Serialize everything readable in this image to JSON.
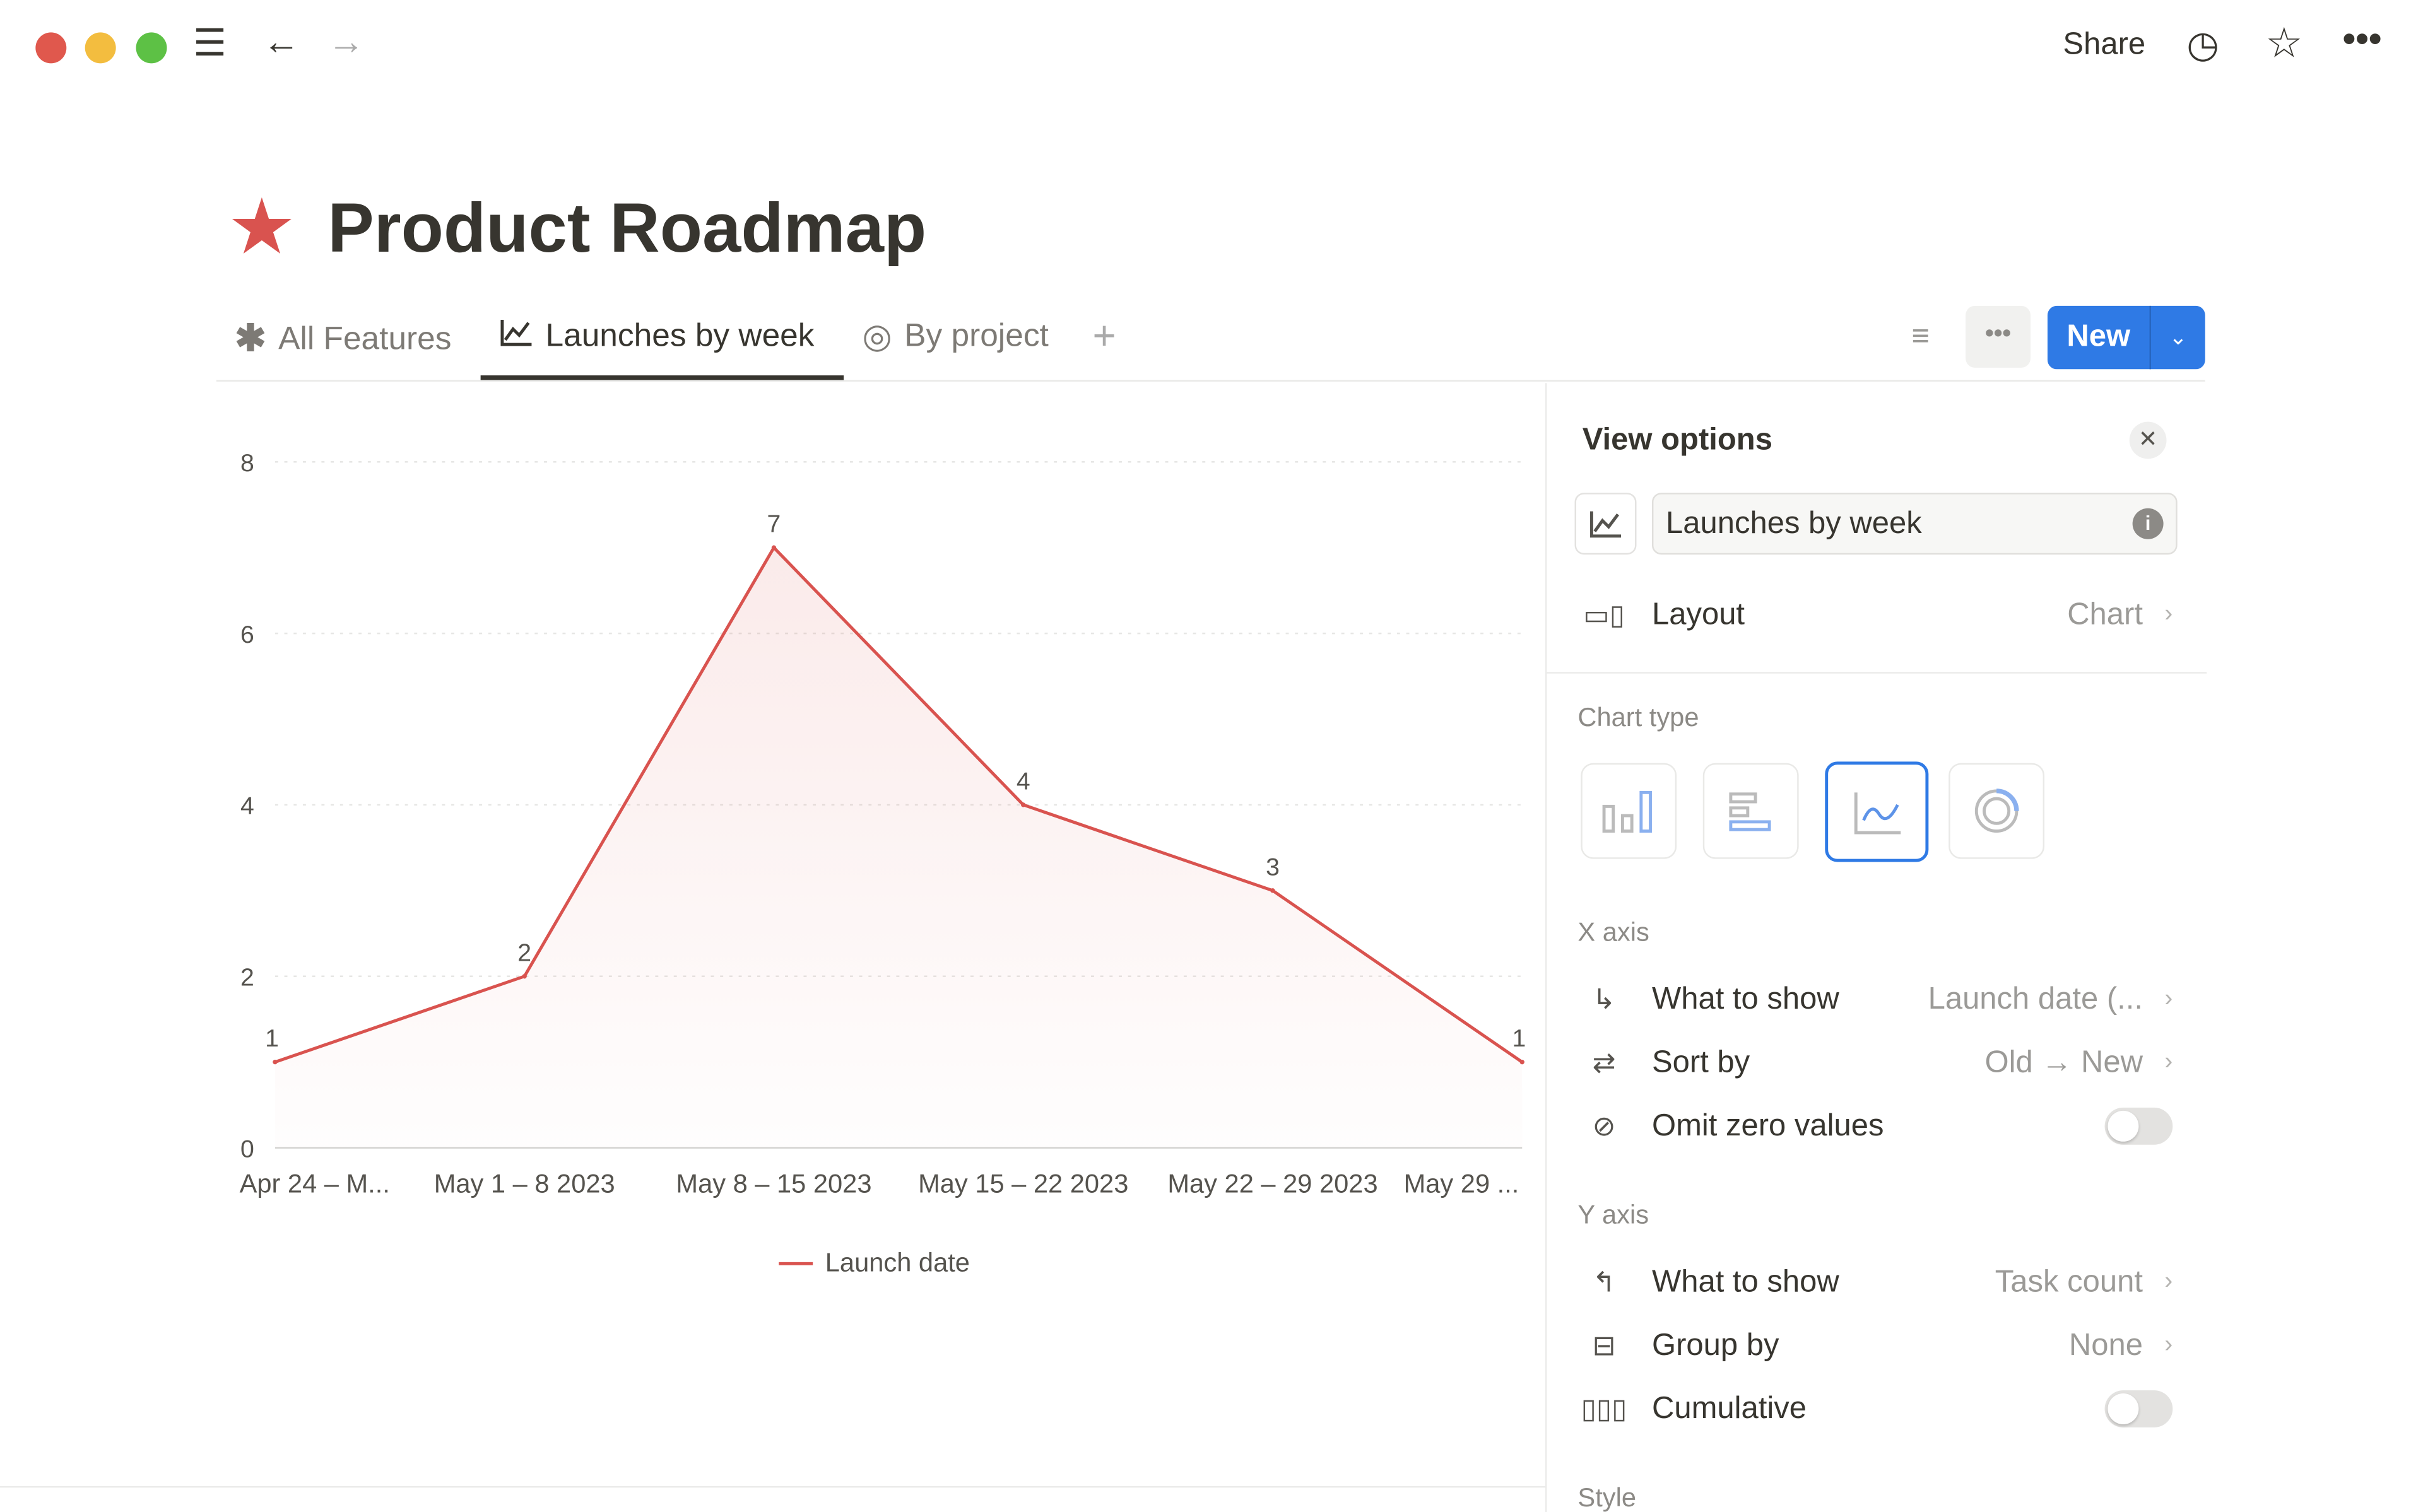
{
  "topbar": {
    "share_label": "Share",
    "icons": [
      "menu-icon",
      "back-arrow-icon",
      "forward-arrow-icon",
      "clock-icon",
      "star-icon",
      "more-icon"
    ]
  },
  "page": {
    "title": "Product Roadmap",
    "icon": "star-icon",
    "icon_color": "#d9534f"
  },
  "tabs": [
    {
      "label": "All Features",
      "icon": "asterisk-icon"
    },
    {
      "label": "Launches by week",
      "icon": "line-chart-icon",
      "active": true
    },
    {
      "label": "By project",
      "icon": "target-icon"
    }
  ],
  "toolbar": {
    "new_label": "New",
    "accent": "#2f7ae5"
  },
  "chart_data": {
    "type": "area",
    "categories": [
      "Apr 24 – M...",
      "May 1 – 8 2023",
      "May 8 – 15 2023",
      "May 15 – 22 2023",
      "May 22 – 29 2023",
      "May 29 ..."
    ],
    "series": [
      {
        "name": "Launch date",
        "values": [
          1,
          2,
          7,
          4,
          3,
          1
        ],
        "color": "#d9534f"
      }
    ],
    "ylim": [
      0,
      8
    ],
    "yticks": [
      0,
      2,
      4,
      6,
      8
    ],
    "grid": true,
    "legend": "bottom",
    "data_labels": true
  },
  "view_options": {
    "title": "View options",
    "view_name": "Launches by week",
    "layout_label": "Layout",
    "layout_value": "Chart",
    "chart_type_label": "Chart type",
    "chart_types": [
      "vertical-bar",
      "horizontal-bar",
      "line",
      "donut"
    ],
    "selected_chart_type": "line",
    "x_axis_label": "X axis",
    "x_what_label": "What to show",
    "x_what_value": "Launch date (...",
    "sort_label": "Sort by",
    "sort_value": "Old → New",
    "omit_label": "Omit zero values",
    "omit_on": false,
    "y_axis_label": "Y axis",
    "y_what_label": "What to show",
    "y_what_value": "Task count",
    "group_label": "Group by",
    "group_value": "None",
    "cumulative_label": "Cumulative",
    "cumulative_on": false,
    "style_label": "Style"
  }
}
